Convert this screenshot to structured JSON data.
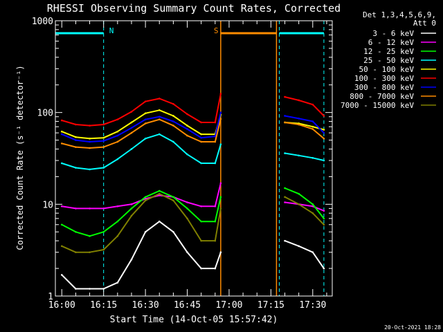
{
  "chart_data": {
    "type": "line",
    "title": "RHESSI Observing Summary Count Rates, Corrected",
    "xlabel": "Start Time (14-Oct-05 15:57:42)",
    "ylabel": "Corrected Count Rate (s⁻¹ detector⁻¹)",
    "yscale": "log",
    "ylim": [
      1,
      1000
    ],
    "xlim": [
      "15:57:42",
      "17:37:00"
    ],
    "x_ticks": [
      "16:00",
      "16:15",
      "16:30",
      "16:45",
      "17:00",
      "17:15",
      "17:30"
    ],
    "y_ticks": [
      "1",
      "10",
      "100",
      "1000"
    ],
    "legend_header": [
      "Det 1,3,4,5,6,9,",
      "Att 0"
    ],
    "legend_position": "right",
    "timestamp": "20-Oct-2021 18:28",
    "markers": [
      {
        "label": "N",
        "color": "#00ffff",
        "type": "night",
        "start": "15:57:42",
        "end": "16:15"
      },
      {
        "label": "",
        "color": "#00ffff",
        "type": "night",
        "start": "17:18",
        "end": "17:34"
      },
      {
        "label": "S",
        "color": "#ff8c00",
        "type": "saa",
        "start": "16:57",
        "end": "17:17"
      }
    ],
    "data_gaps": [
      [
        "16:57",
        "17:18"
      ]
    ],
    "times": [
      "16:00",
      "16:05",
      "16:10",
      "16:15",
      "16:20",
      "16:25",
      "16:30",
      "16:35",
      "16:40",
      "16:45",
      "16:50",
      "16:55",
      "16:57",
      "17:18",
      "17:20",
      "17:25",
      "17:30",
      "17:34"
    ],
    "series": [
      {
        "name": "3 - 6 keV",
        "color": "#ffffff",
        "values": [
          1.7,
          1.2,
          1.2,
          1.2,
          1.4,
          2.5,
          5,
          6.5,
          5,
          3,
          2,
          2,
          3,
          null,
          4,
          3.5,
          3,
          2
        ]
      },
      {
        "name": "6 - 12 keV",
        "color": "#ff00ff",
        "values": [
          9.5,
          9,
          9,
          9,
          9.5,
          10,
          11.5,
          12.5,
          12,
          10.5,
          9.5,
          9.5,
          17,
          null,
          10.5,
          10,
          9.5,
          8.5
        ]
      },
      {
        "name": "12 - 25 keV",
        "color": "#00ff00",
        "values": [
          6,
          5,
          4.5,
          5,
          6.5,
          9,
          12,
          14,
          12,
          9,
          6.5,
          6.5,
          12,
          null,
          15,
          13,
          10,
          7
        ]
      },
      {
        "name": "25 - 50 keV",
        "color": "#00ffff",
        "values": [
          28,
          25,
          24,
          25,
          31,
          40,
          52,
          58,
          48,
          35,
          28,
          28,
          45,
          null,
          36,
          34,
          32,
          30
        ]
      },
      {
        "name": "50 - 100 keV",
        "color": "#ffff00",
        "values": [
          62,
          54,
          52,
          53,
          62,
          78,
          98,
          106,
          92,
          72,
          58,
          58,
          95,
          null,
          78,
          76,
          70,
          65
        ]
      },
      {
        "name": "100 - 300 keV",
        "color": "#ff0000",
        "values": [
          82,
          74,
          72,
          74,
          84,
          102,
          132,
          142,
          124,
          96,
          78,
          78,
          160,
          null,
          148,
          136,
          122,
          92
        ]
      },
      {
        "name": "300 - 800 keV",
        "color": "#0000ff",
        "values": [
          58,
          50,
          48,
          49,
          56,
          68,
          84,
          90,
          80,
          66,
          53,
          55,
          100,
          null,
          92,
          86,
          80,
          60
        ]
      },
      {
        "name": "800 - 7000 keV",
        "color": "#ff8c00",
        "values": [
          46,
          42,
          41,
          42,
          48,
          60,
          76,
          84,
          72,
          56,
          48,
          48,
          85,
          null,
          78,
          74,
          66,
          52
        ]
      },
      {
        "name": "7000 - 15000 keV",
        "color": "#808000",
        "values": [
          3.5,
          3,
          3,
          3.2,
          4.5,
          7.5,
          11,
          13,
          11,
          7,
          4,
          4,
          9,
          null,
          12,
          10,
          8,
          6
        ]
      }
    ]
  }
}
